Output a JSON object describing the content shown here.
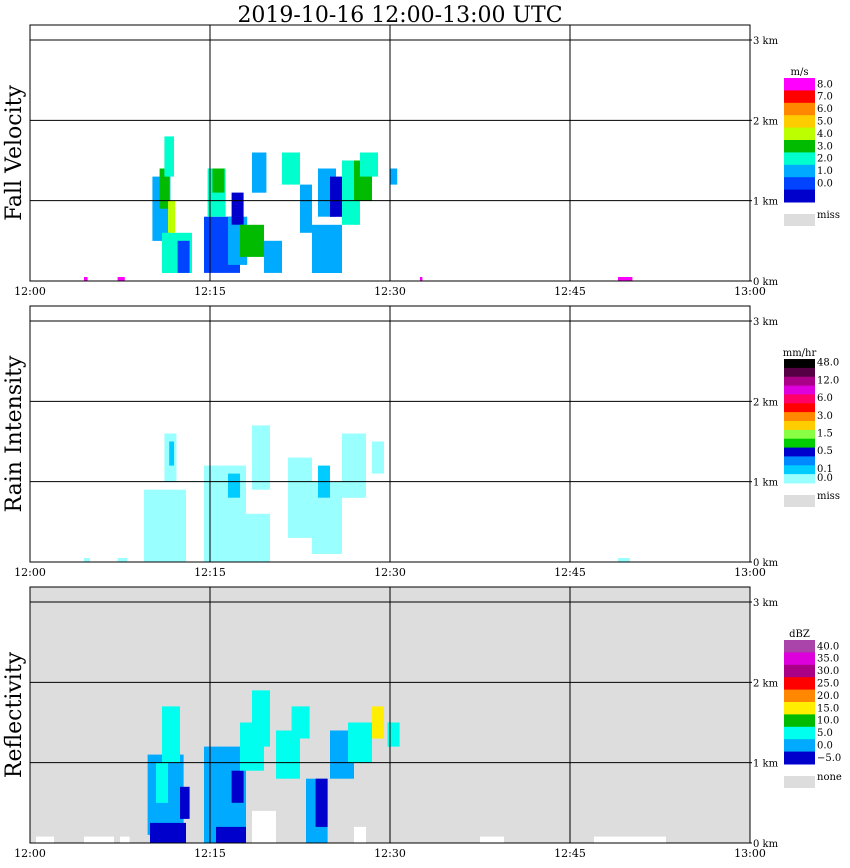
{
  "title": "2019-10-16   12:00-13:00 UTC",
  "x_ticks": [
    "12:00",
    "12:15",
    "12:30",
    "12:45",
    "13:00"
  ],
  "y_ticks": [
    "0 km",
    "1 km",
    "2 km",
    "3 km"
  ],
  "chart_data": [
    {
      "type": "heatmap",
      "ylabel": "Fall Velocity",
      "background": "#ffffff",
      "legend": {
        "unit": "m/s",
        "levels": [
          {
            "label": "8.0",
            "color": "#ff00ff"
          },
          {
            "label": "7.0",
            "color": "#ff0000"
          },
          {
            "label": "6.0",
            "color": "#ff8800"
          },
          {
            "label": "5.0",
            "color": "#ffcc00"
          },
          {
            "label": "4.0",
            "color": "#bbff00"
          },
          {
            "label": "3.0",
            "color": "#00bb00"
          },
          {
            "label": "2.0",
            "color": "#00ffcc"
          },
          {
            "label": "1.0",
            "color": "#00aaff"
          },
          {
            "label": "0.0",
            "color": "#0044ff"
          },
          {
            "label": "",
            "color": "#0000cc"
          }
        ],
        "missing": {
          "label": "miss",
          "color": "#dddddd"
        }
      },
      "xlim": [
        "12:00",
        "13:00"
      ],
      "ylim_km": [
        0,
        3
      ],
      "cells": [
        {
          "t": 10.2,
          "z": 0.5,
          "dt": 1.5,
          "dz": 0.8,
          "color": "#00aaff"
        },
        {
          "t": 10.8,
          "z": 0.9,
          "dt": 0.8,
          "dz": 0.5,
          "color": "#00bb00"
        },
        {
          "t": 11.0,
          "z": 0.1,
          "dt": 2.5,
          "dz": 0.5,
          "color": "#00ffcc"
        },
        {
          "t": 11.2,
          "z": 1.3,
          "dt": 0.8,
          "dz": 0.5,
          "color": "#00ffcc"
        },
        {
          "t": 11.5,
          "z": 0.6,
          "dt": 0.6,
          "dz": 0.4,
          "color": "#bbff00"
        },
        {
          "t": 12.3,
          "z": 0.1,
          "dt": 1.0,
          "dz": 0.4,
          "color": "#0044ff"
        },
        {
          "t": 14.5,
          "z": 0.1,
          "dt": 3.0,
          "dz": 0.7,
          "color": "#0044ff"
        },
        {
          "t": 14.8,
          "z": 0.8,
          "dt": 1.5,
          "dz": 0.6,
          "color": "#00ffcc"
        },
        {
          "t": 15.2,
          "z": 1.1,
          "dt": 1.0,
          "dz": 0.3,
          "color": "#00bb00"
        },
        {
          "t": 16.5,
          "z": 0.2,
          "dt": 1.6,
          "dz": 0.6,
          "color": "#00aaff"
        },
        {
          "t": 16.8,
          "z": 0.7,
          "dt": 1.0,
          "dz": 0.4,
          "color": "#0000cc"
        },
        {
          "t": 17.5,
          "z": 0.3,
          "dt": 2.0,
          "dz": 0.4,
          "color": "#00bb00"
        },
        {
          "t": 18.5,
          "z": 1.1,
          "dt": 1.2,
          "dz": 0.5,
          "color": "#00aaff"
        },
        {
          "t": 19.5,
          "z": 0.1,
          "dt": 1.5,
          "dz": 0.4,
          "color": "#00aaff"
        },
        {
          "t": 21.0,
          "z": 1.2,
          "dt": 1.5,
          "dz": 0.4,
          "color": "#00ffcc"
        },
        {
          "t": 22.5,
          "z": 0.6,
          "dt": 1.0,
          "dz": 0.6,
          "color": "#00aaff"
        },
        {
          "t": 23.5,
          "z": 0.1,
          "dt": 2.5,
          "dz": 0.6,
          "color": "#00aaff"
        },
        {
          "t": 24.0,
          "z": 0.8,
          "dt": 1.5,
          "dz": 0.6,
          "color": "#00aaff"
        },
        {
          "t": 25.0,
          "z": 0.8,
          "dt": 1.0,
          "dz": 0.5,
          "color": "#0000cc"
        },
        {
          "t": 26.0,
          "z": 0.7,
          "dt": 1.5,
          "dz": 0.8,
          "color": "#00ffcc"
        },
        {
          "t": 27.0,
          "z": 1.0,
          "dt": 1.5,
          "dz": 0.5,
          "color": "#00bb00"
        },
        {
          "t": 27.5,
          "z": 1.3,
          "dt": 1.5,
          "dz": 0.3,
          "color": "#00ffcc"
        },
        {
          "t": 30.0,
          "z": 1.2,
          "dt": 0.6,
          "dz": 0.2,
          "color": "#00aaff"
        },
        {
          "t": 4.5,
          "z": 0.0,
          "dt": 0.3,
          "dz": 0.05,
          "color": "#ff00ff"
        },
        {
          "t": 7.3,
          "z": 0.0,
          "dt": 0.6,
          "dz": 0.05,
          "color": "#ff00ff"
        },
        {
          "t": 32.5,
          "z": 0.0,
          "dt": 0.2,
          "dz": 0.05,
          "color": "#ff00ff"
        },
        {
          "t": 49.0,
          "z": 0.0,
          "dt": 1.2,
          "dz": 0.05,
          "color": "#ff00ff"
        }
      ]
    },
    {
      "type": "heatmap",
      "ylabel": "Rain Intensity",
      "background": "#ffffff",
      "legend": {
        "unit": "mm/hr",
        "levels": [
          {
            "label": "48.0",
            "color": "#000000"
          },
          {
            "label": "",
            "color": "#550044"
          },
          {
            "label": "12.0",
            "color": "#aa0088"
          },
          {
            "label": "",
            "color": "#dd00dd"
          },
          {
            "label": "6.0",
            "color": "#ff0066"
          },
          {
            "label": "",
            "color": "#ff0000"
          },
          {
            "label": "3.0",
            "color": "#ff8800"
          },
          {
            "label": "",
            "color": "#ffcc00"
          },
          {
            "label": "1.5",
            "color": "#88ff44"
          },
          {
            "label": "",
            "color": "#00cc00"
          },
          {
            "label": "0.5",
            "color": "#0000cc"
          },
          {
            "label": "",
            "color": "#0088ff"
          },
          {
            "label": "0.1",
            "color": "#00ccff"
          },
          {
            "label": "0.0",
            "color": "#99ffff"
          }
        ],
        "missing": {
          "label": "miss",
          "color": "#dddddd"
        }
      },
      "xlim": [
        "12:00",
        "13:00"
      ],
      "ylim_km": [
        0,
        3
      ],
      "cells": [
        {
          "t": 9.5,
          "z": 0.0,
          "dt": 3.5,
          "dz": 0.9,
          "color": "#99ffff"
        },
        {
          "t": 11.2,
          "z": 1.0,
          "dt": 1.0,
          "dz": 0.6,
          "color": "#99ffff"
        },
        {
          "t": 11.6,
          "z": 1.2,
          "dt": 0.4,
          "dz": 0.3,
          "color": "#00ccff"
        },
        {
          "t": 14.5,
          "z": 0.0,
          "dt": 3.5,
          "dz": 1.2,
          "color": "#99ffff"
        },
        {
          "t": 17.5,
          "z": 0.0,
          "dt": 2.5,
          "dz": 0.6,
          "color": "#99ffff"
        },
        {
          "t": 16.5,
          "z": 0.8,
          "dt": 1.0,
          "dz": 0.3,
          "color": "#00ccff"
        },
        {
          "t": 18.5,
          "z": 0.9,
          "dt": 1.5,
          "dz": 0.8,
          "color": "#99ffff"
        },
        {
          "t": 21.5,
          "z": 0.3,
          "dt": 2.0,
          "dz": 1.0,
          "color": "#99ffff"
        },
        {
          "t": 23.5,
          "z": 0.1,
          "dt": 2.5,
          "dz": 0.9,
          "color": "#99ffff"
        },
        {
          "t": 24.0,
          "z": 0.8,
          "dt": 1.0,
          "dz": 0.4,
          "color": "#00ccff"
        },
        {
          "t": 26.0,
          "z": 0.8,
          "dt": 2.0,
          "dz": 0.8,
          "color": "#99ffff"
        },
        {
          "t": 28.5,
          "z": 1.1,
          "dt": 1.0,
          "dz": 0.4,
          "color": "#99ffff"
        },
        {
          "t": 4.5,
          "z": 0.0,
          "dt": 0.5,
          "dz": 0.05,
          "color": "#99ffff"
        },
        {
          "t": 7.3,
          "z": 0.0,
          "dt": 0.8,
          "dz": 0.05,
          "color": "#99ffff"
        },
        {
          "t": 49.0,
          "z": 0.0,
          "dt": 1.0,
          "dz": 0.05,
          "color": "#99ffff"
        }
      ]
    },
    {
      "type": "heatmap",
      "ylabel": "Reflectivity",
      "background": "#dddddd",
      "legend": {
        "unit": "dBZ",
        "levels": [
          {
            "label": "40.0",
            "color": "#aa44aa"
          },
          {
            "label": "35.0",
            "color": "#dd00dd"
          },
          {
            "label": "30.0",
            "color": "#aa0088"
          },
          {
            "label": "25.0",
            "color": "#ff0000"
          },
          {
            "label": "20.0",
            "color": "#ff8800"
          },
          {
            "label": "15.0",
            "color": "#ffee00"
          },
          {
            "label": "10.0",
            "color": "#00bb00"
          },
          {
            "label": "5.0",
            "color": "#00ffee"
          },
          {
            "label": "0.0",
            "color": "#00aaff"
          },
          {
            "label": "−5.0",
            "color": "#0000cc"
          }
        ],
        "missing": {
          "label": "none",
          "color": "#dddddd"
        }
      },
      "xlim": [
        "12:00",
        "13:00"
      ],
      "ylim_km": [
        0,
        3
      ],
      "cells": [
        {
          "t": 9.8,
          "z": 0.1,
          "dt": 3.0,
          "dz": 1.0,
          "color": "#00aaff"
        },
        {
          "t": 10.0,
          "z": 0.0,
          "dt": 3.0,
          "dz": 0.25,
          "color": "#0000cc"
        },
        {
          "t": 10.5,
          "z": 0.5,
          "dt": 1.0,
          "dz": 0.5,
          "color": "#00ffee"
        },
        {
          "t": 11.0,
          "z": 1.0,
          "dt": 1.5,
          "dz": 0.7,
          "color": "#00ffee"
        },
        {
          "t": 12.5,
          "z": 0.3,
          "dt": 0.8,
          "dz": 0.4,
          "color": "#0000cc"
        },
        {
          "t": 14.5,
          "z": 0.0,
          "dt": 3.5,
          "dz": 1.2,
          "color": "#00aaff"
        },
        {
          "t": 15.5,
          "z": 0.0,
          "dt": 2.5,
          "dz": 0.2,
          "color": "#0000cc"
        },
        {
          "t": 16.8,
          "z": 0.5,
          "dt": 1.0,
          "dz": 0.4,
          "color": "#0000cc"
        },
        {
          "t": 17.5,
          "z": 0.9,
          "dt": 2.0,
          "dz": 0.6,
          "color": "#00ffee"
        },
        {
          "t": 18.5,
          "z": 1.2,
          "dt": 1.5,
          "dz": 0.7,
          "color": "#00ffee"
        },
        {
          "t": 20.5,
          "z": 0.8,
          "dt": 2.0,
          "dz": 0.6,
          "color": "#00ffee"
        },
        {
          "t": 21.8,
          "z": 1.3,
          "dt": 1.5,
          "dz": 0.4,
          "color": "#00ffee"
        },
        {
          "t": 23.0,
          "z": 0.0,
          "dt": 1.8,
          "dz": 0.8,
          "color": "#00aaff"
        },
        {
          "t": 23.8,
          "z": 0.2,
          "dt": 1.0,
          "dz": 0.6,
          "color": "#0000cc"
        },
        {
          "t": 25.0,
          "z": 0.8,
          "dt": 2.0,
          "dz": 0.6,
          "color": "#00aaff"
        },
        {
          "t": 26.5,
          "z": 1.0,
          "dt": 2.0,
          "dz": 0.5,
          "color": "#00ffee"
        },
        {
          "t": 28.5,
          "z": 1.3,
          "dt": 1.0,
          "dz": 0.4,
          "color": "#ffee00"
        },
        {
          "t": 29.8,
          "z": 1.2,
          "dt": 1.0,
          "dz": 0.3,
          "color": "#00ffee"
        },
        {
          "t": 18.5,
          "z": 0.0,
          "dt": 2.0,
          "dz": 0.4,
          "color": "#ffffff"
        },
        {
          "t": 27.0,
          "z": 0.0,
          "dt": 1.0,
          "dz": 0.2,
          "color": "#ffffff"
        },
        {
          "t": 0.5,
          "z": 0.0,
          "dt": 1.5,
          "dz": 0.08,
          "color": "#ffffff"
        },
        {
          "t": 4.5,
          "z": 0.0,
          "dt": 2.5,
          "dz": 0.08,
          "color": "#ffffff"
        },
        {
          "t": 7.5,
          "z": 0.0,
          "dt": 0.8,
          "dz": 0.08,
          "color": "#ffffff"
        },
        {
          "t": 37.5,
          "z": 0.0,
          "dt": 2.0,
          "dz": 0.08,
          "color": "#ffffff"
        },
        {
          "t": 47.0,
          "z": 0.0,
          "dt": 6.0,
          "dz": 0.08,
          "color": "#ffffff"
        }
      ]
    }
  ]
}
